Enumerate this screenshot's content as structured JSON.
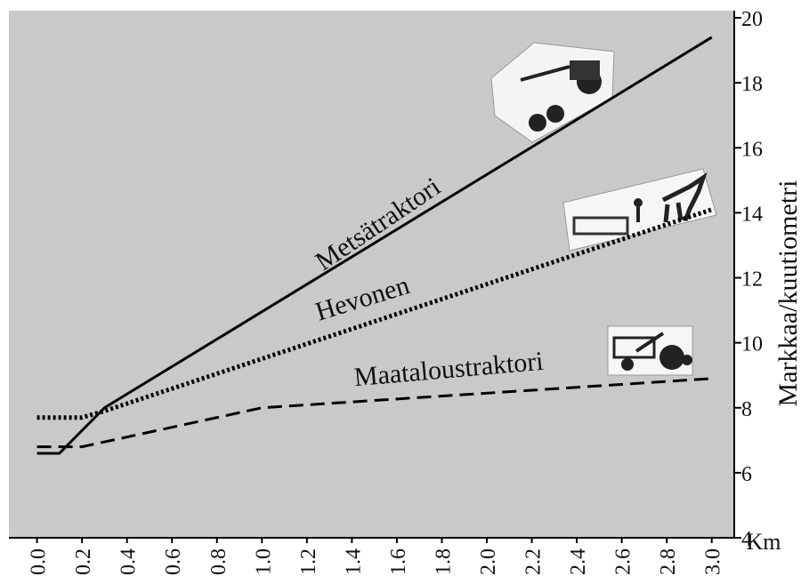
{
  "chart_data": {
    "type": "line",
    "x_label": "Km",
    "y_label": "Markkaa/kuutiometri",
    "xlim": [
      -0.125,
      3.1
    ],
    "ylim": [
      4,
      20
    ],
    "xticks": [
      {
        "value": 0.0,
        "label": "0.0"
      },
      {
        "value": 0.2,
        "label": "0.2"
      },
      {
        "value": 0.4,
        "label": "0.4"
      },
      {
        "value": 0.6,
        "label": "0.6"
      },
      {
        "value": 0.8,
        "label": "0.8"
      },
      {
        "value": 1.0,
        "label": "1.0"
      },
      {
        "value": 1.2,
        "label": "1.2"
      },
      {
        "value": 1.4,
        "label": "1.4"
      },
      {
        "value": 1.6,
        "label": "1.6"
      },
      {
        "value": 1.8,
        "label": "1.8"
      },
      {
        "value": 2.0,
        "label": "2.0"
      },
      {
        "value": 2.2,
        "label": "2.2"
      },
      {
        "value": 2.4,
        "label": "2.4"
      },
      {
        "value": 2.6,
        "label": "2.6"
      },
      {
        "value": 2.8,
        "label": "2.8"
      },
      {
        "value": 3.0,
        "label": "3.0"
      }
    ],
    "yticks": [
      4,
      6,
      8,
      10,
      12,
      14,
      16,
      18,
      20
    ],
    "series": [
      {
        "name": "Metsätraktori",
        "color": "#000000",
        "style": "solid",
        "x": [
          0.0,
          0.1,
          0.3,
          3.0
        ],
        "values": [
          6.6,
          6.6,
          8.0,
          19.4
        ]
      },
      {
        "name": "Hevonen",
        "color": "#000000",
        "style": "dotted",
        "x": [
          0.0,
          0.2,
          0.3,
          3.0
        ],
        "values": [
          7.7,
          7.7,
          7.9,
          14.1
        ]
      },
      {
        "name": "Maataloustraktori",
        "color": "#000000",
        "style": "dashed",
        "x": [
          0.0,
          0.2,
          1.0,
          3.0
        ],
        "values": [
          6.8,
          6.8,
          8.0,
          8.9
        ]
      }
    ]
  }
}
